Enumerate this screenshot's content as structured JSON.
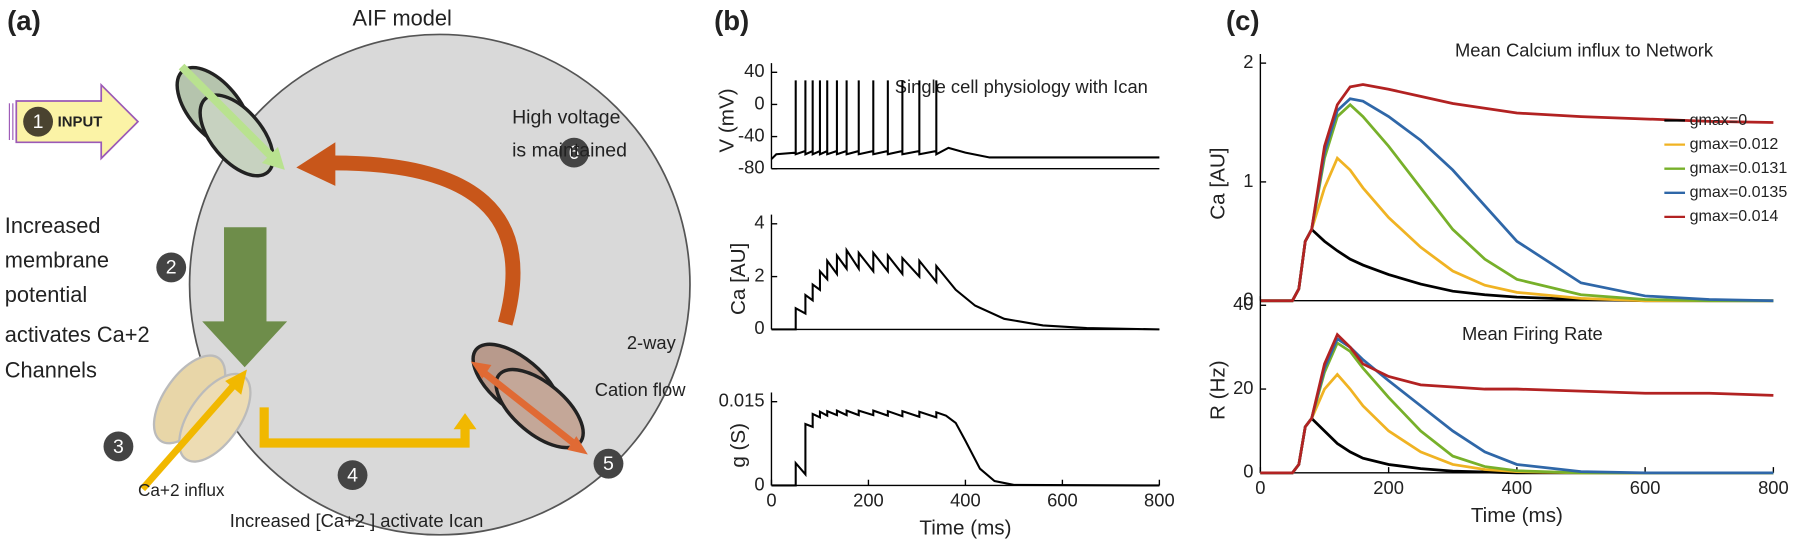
{
  "panel_labels": [
    "(a)",
    "(b)",
    "(c)"
  ],
  "diagram": {
    "title": "AIF model",
    "input": "INPUT",
    "steps": [
      "1",
      "2",
      "3",
      "4",
      "5",
      "6"
    ],
    "membrane_text": [
      "Increased",
      "membrane",
      "potential",
      "activates Ca+2",
      "Channels"
    ],
    "ca_influx": "Ca+2 influx",
    "ican_text": "Increased [Ca+2 ] activate Ican",
    "high_voltage": [
      "High voltage",
      "is maintained"
    ],
    "cation_flow": [
      "2-way",
      "Cation flow"
    ]
  },
  "chart_data": [
    {
      "type": "line",
      "title": "Single cell physiology with Ican",
      "ylabel": "V (mV)",
      "color": "#000000",
      "xlim": [
        0,
        800
      ],
      "ylim": [
        -80,
        40
      ],
      "yticks": [
        40,
        0,
        -40,
        -80
      ],
      "x": [
        0,
        10,
        50,
        50,
        50,
        70,
        70,
        70,
        85,
        85,
        85,
        100,
        100,
        100,
        115,
        115,
        115,
        135,
        135,
        135,
        155,
        155,
        155,
        180,
        180,
        180,
        210,
        210,
        210,
        240,
        240,
        240,
        270,
        270,
        270,
        305,
        305,
        305,
        340,
        340,
        340,
        365,
        400,
        450,
        800
      ],
      "values": [
        -68,
        -62,
        -60,
        30,
        -62,
        -58,
        30,
        -62,
        -58,
        30,
        -62,
        -58,
        30,
        -62,
        -58,
        30,
        -62,
        -58,
        30,
        -62,
        -58,
        30,
        -62,
        -58,
        30,
        -62,
        -58,
        30,
        -62,
        -58,
        30,
        -62,
        -58,
        30,
        -62,
        -58,
        30,
        -62,
        -58,
        30,
        -62,
        -54,
        -60,
        -66,
        -66
      ]
    },
    {
      "type": "line",
      "ylabel": "Ca [AU]",
      "color": "#000000",
      "xlim": [
        0,
        800
      ],
      "ylim": [
        0,
        4
      ],
      "yticks": [
        0,
        2,
        4
      ],
      "x": [
        0,
        50,
        50,
        70,
        70,
        85,
        85,
        100,
        100,
        115,
        115,
        135,
        135,
        155,
        155,
        180,
        180,
        210,
        210,
        240,
        240,
        270,
        270,
        305,
        305,
        340,
        340,
        380,
        420,
        480,
        560,
        650,
        800
      ],
      "values": [
        0,
        0,
        0.8,
        0.6,
        1.3,
        1.1,
        1.7,
        1.5,
        2.2,
        1.9,
        2.6,
        2.1,
        2.8,
        2.3,
        3.0,
        2.3,
        2.9,
        2.2,
        2.9,
        2.2,
        2.8,
        2.1,
        2.7,
        2.0,
        2.6,
        1.8,
        2.4,
        1.5,
        0.9,
        0.4,
        0.15,
        0.05,
        0
      ]
    },
    {
      "type": "line",
      "ylabel": "g (S)",
      "xlabel": "Time (ms)",
      "color": "#000000",
      "xlim": [
        0,
        800
      ],
      "ylim": [
        0,
        0.015
      ],
      "yticks": [
        0,
        0.015
      ],
      "xticks": [
        0,
        200,
        400,
        600,
        800
      ],
      "x": [
        0,
        50,
        50,
        70,
        70,
        85,
        85,
        100,
        100,
        115,
        115,
        135,
        135,
        155,
        155,
        180,
        180,
        210,
        210,
        240,
        240,
        270,
        270,
        305,
        305,
        340,
        340,
        360,
        380,
        400,
        430,
        460,
        500,
        800
      ],
      "values": [
        0,
        0,
        0.004,
        0.002,
        0.011,
        0.0105,
        0.0128,
        0.0122,
        0.0132,
        0.0125,
        0.0133,
        0.0126,
        0.0134,
        0.0126,
        0.0134,
        0.0126,
        0.0134,
        0.0126,
        0.0134,
        0.0125,
        0.0133,
        0.0124,
        0.0133,
        0.0123,
        0.0132,
        0.0122,
        0.0131,
        0.0125,
        0.0112,
        0.008,
        0.003,
        0.0008,
        0.0001,
        0
      ]
    },
    {
      "type": "line",
      "title": "Mean Calcium influx to Network",
      "ylabel": "Ca [AU]",
      "legend": "right",
      "xlim": [
        0,
        800
      ],
      "ylim": [
        0,
        2
      ],
      "yticks": [
        0,
        1,
        2
      ],
      "x": [
        0,
        50,
        60,
        70,
        80,
        100,
        120,
        140,
        160,
        200,
        250,
        300,
        350,
        400,
        500,
        600,
        700,
        800
      ],
      "series": [
        {
          "name": "gmax=0",
          "color": "#000000",
          "values": [
            0,
            0,
            0.1,
            0.5,
            0.6,
            0.5,
            0.42,
            0.35,
            0.3,
            0.22,
            0.14,
            0.08,
            0.05,
            0.03,
            0.01,
            0,
            0,
            0
          ]
        },
        {
          "name": "gmax=0.012",
          "color": "#f0b323",
          "values": [
            0,
            0,
            0.1,
            0.5,
            0.6,
            0.95,
            1.2,
            1.1,
            0.95,
            0.7,
            0.45,
            0.25,
            0.13,
            0.07,
            0.02,
            0,
            0,
            0
          ]
        },
        {
          "name": "gmax=0.0131",
          "color": "#77b02a",
          "values": [
            0,
            0,
            0.1,
            0.5,
            0.6,
            1.2,
            1.55,
            1.65,
            1.55,
            1.3,
            0.95,
            0.6,
            0.35,
            0.18,
            0.05,
            0.01,
            0,
            0
          ]
        },
        {
          "name": "gmax=0.0135",
          "color": "#2f67a8",
          "values": [
            0,
            0,
            0.1,
            0.5,
            0.6,
            1.25,
            1.6,
            1.7,
            1.68,
            1.55,
            1.35,
            1.1,
            0.8,
            0.5,
            0.15,
            0.04,
            0.01,
            0
          ]
        },
        {
          "name": "gmax=0.014",
          "color": "#b22222",
          "values": [
            0,
            0,
            0.1,
            0.5,
            0.6,
            1.3,
            1.65,
            1.8,
            1.82,
            1.78,
            1.72,
            1.66,
            1.62,
            1.58,
            1.55,
            1.53,
            1.51,
            1.5
          ]
        }
      ]
    },
    {
      "type": "line",
      "title": "Mean Firing Rate",
      "ylabel": "R (Hz)",
      "xlabel": "Time (ms)",
      "xlim": [
        0,
        800
      ],
      "ylim": [
        0,
        40
      ],
      "yticks": [
        0,
        20,
        40
      ],
      "xticks": [
        0,
        200,
        400,
        600,
        800
      ],
      "x": [
        0,
        50,
        60,
        70,
        80,
        100,
        120,
        140,
        160,
        200,
        250,
        300,
        350,
        400,
        500,
        600,
        700,
        800
      ],
      "series": [
        {
          "color": "#000000",
          "values": [
            0,
            0,
            2,
            11,
            13,
            10,
            7,
            5,
            3.5,
            2,
            1,
            0.4,
            0.2,
            0,
            0,
            0,
            0,
            0
          ]
        },
        {
          "color": "#f0b323",
          "values": [
            0,
            0,
            2,
            11,
            13,
            20,
            23.5,
            20,
            16,
            10,
            5,
            2,
            0.8,
            0.3,
            0,
            0,
            0,
            0
          ]
        },
        {
          "color": "#77b02a",
          "values": [
            0,
            0,
            2,
            11,
            13,
            24,
            31,
            29,
            25,
            18,
            10,
            4,
            1.5,
            0.5,
            0,
            0,
            0,
            0
          ]
        },
        {
          "color": "#2f67a8",
          "values": [
            0,
            0,
            2,
            11,
            13,
            25,
            32,
            30,
            27,
            22,
            16,
            10,
            5,
            2,
            0.3,
            0,
            0,
            0
          ]
        },
        {
          "color": "#b22222",
          "values": [
            0,
            0,
            2,
            11,
            13,
            26,
            33,
            30,
            26,
            23,
            21,
            20.5,
            20,
            20,
            19.5,
            19,
            19,
            18.5
          ]
        }
      ]
    }
  ]
}
